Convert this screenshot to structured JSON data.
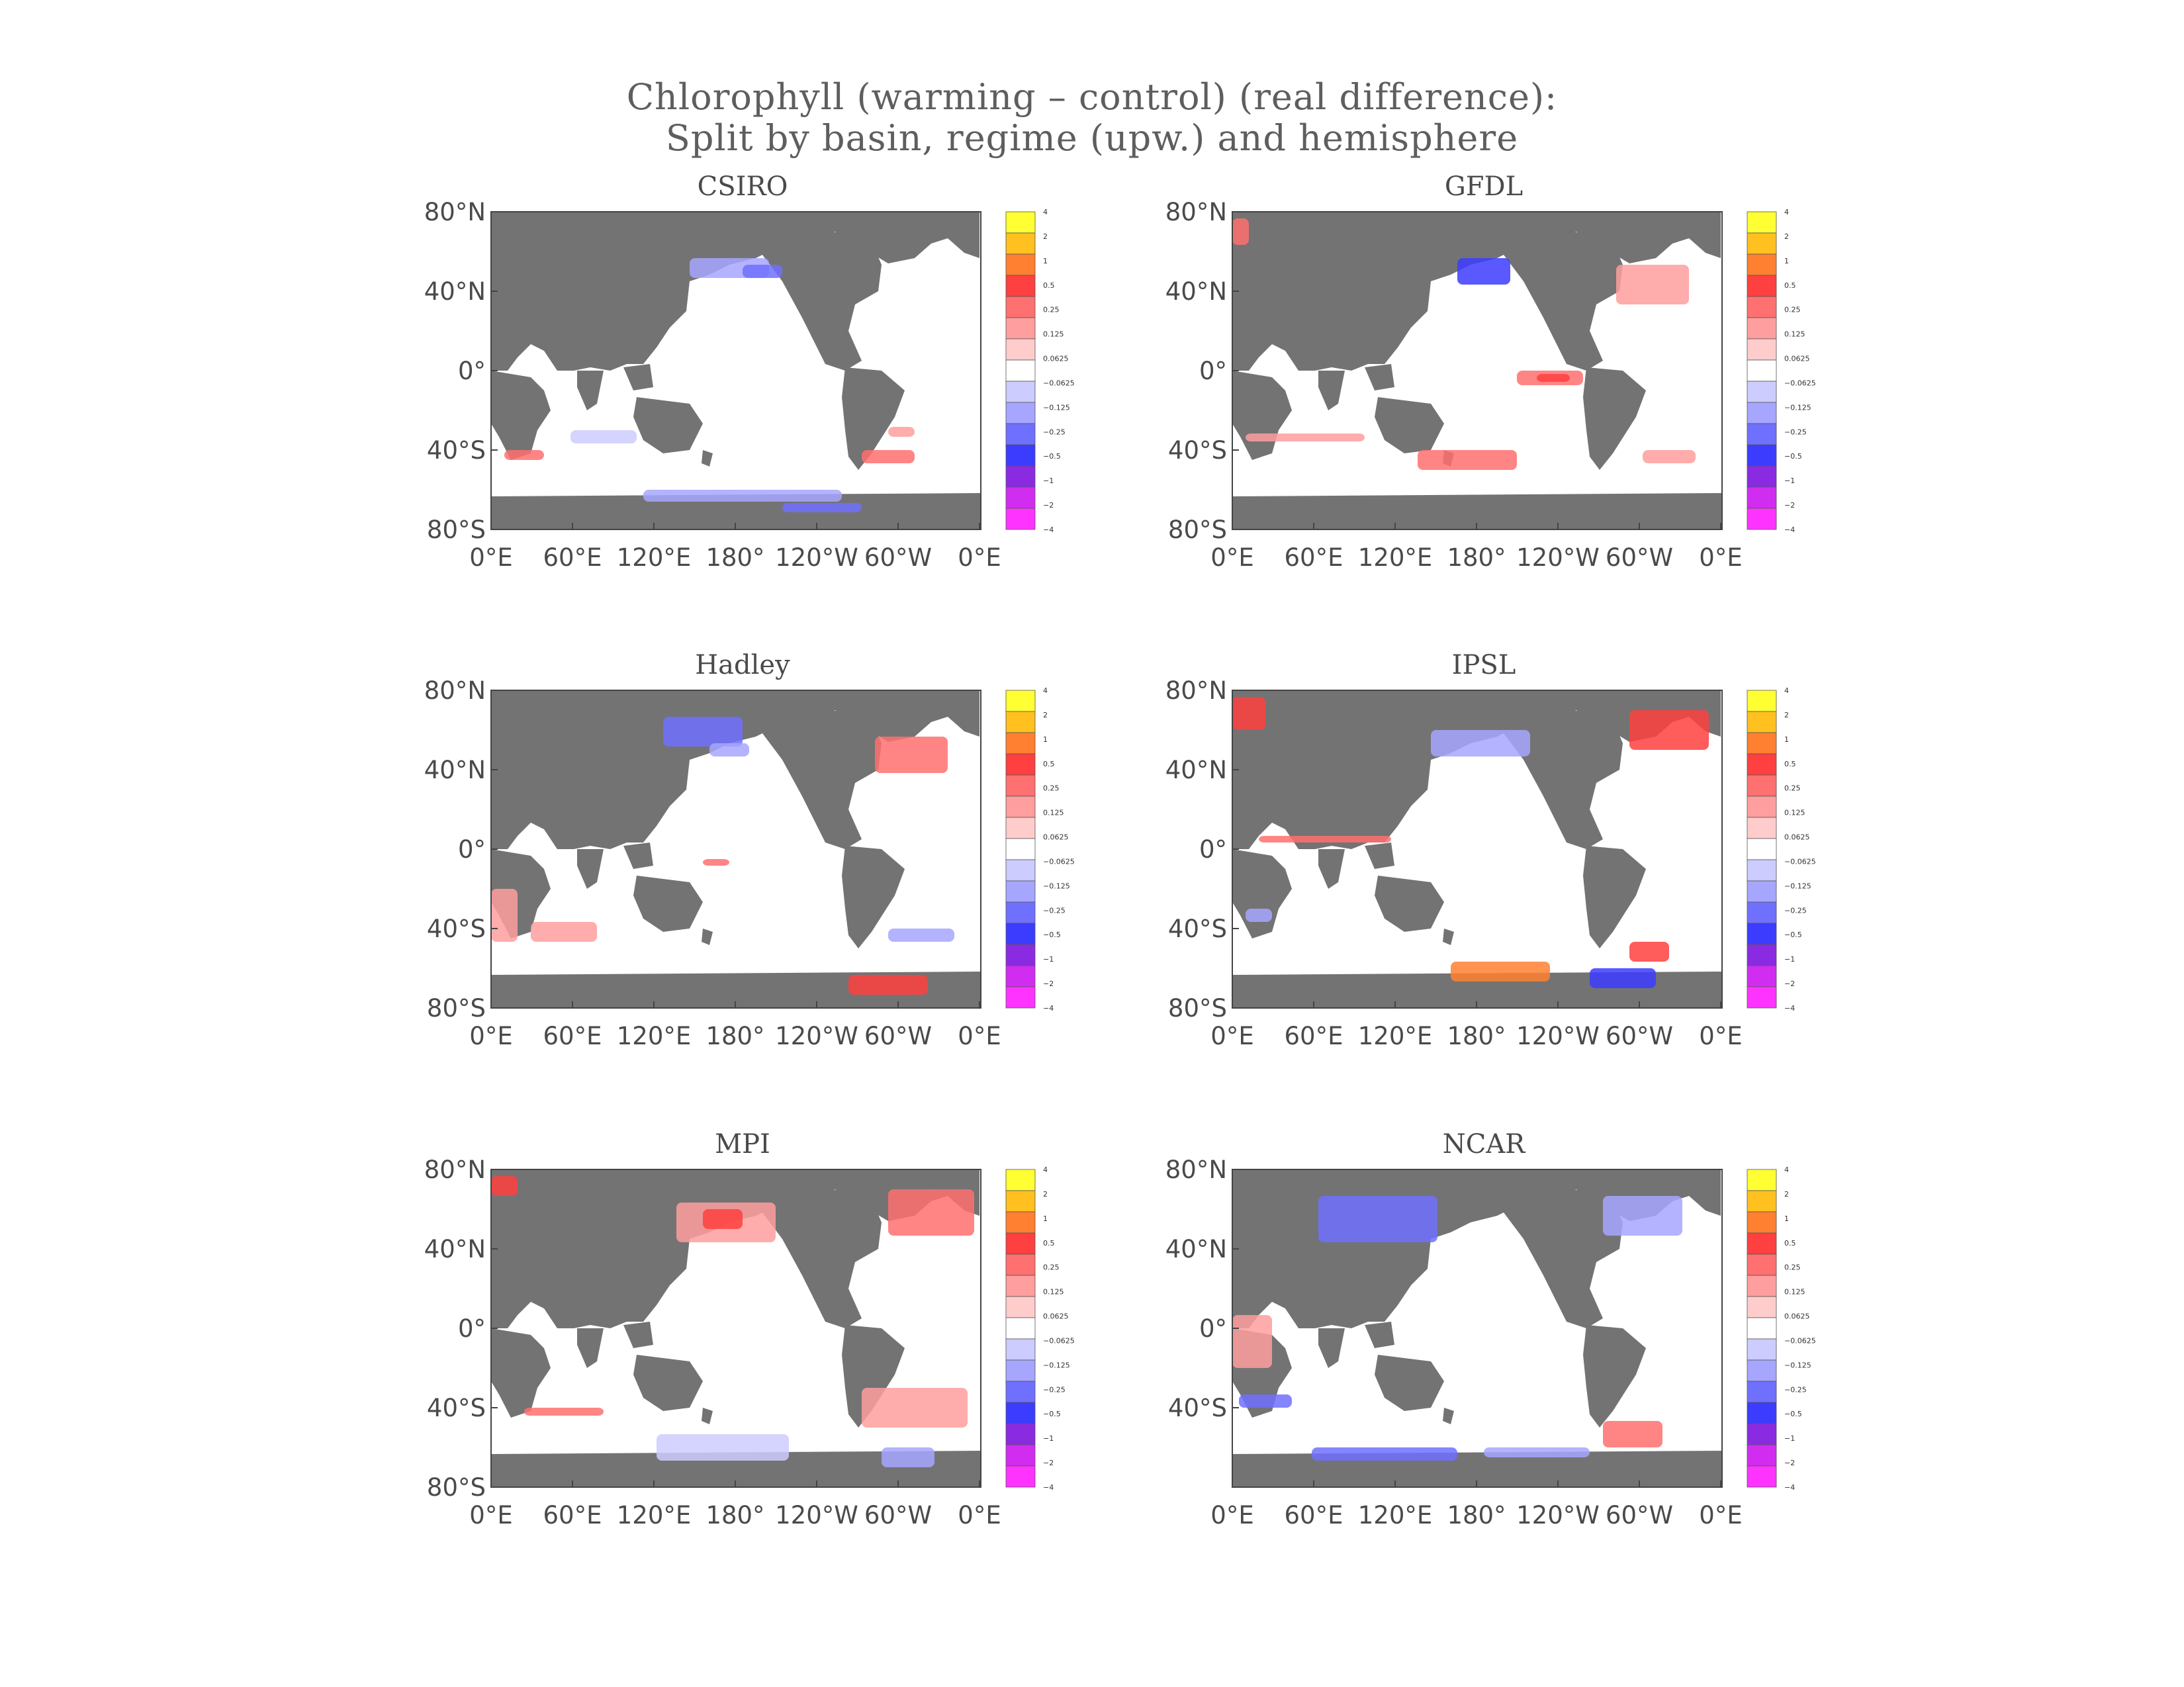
{
  "title_line1": "Chlorophyll (warming – control) (real difference):",
  "title_line2": "Split by basin, regime (upw.) and hemisphere",
  "colors": {
    "land": "#737373",
    "ocean": "#ffffff",
    "frame": "#444444",
    "text": "#4a4a4a"
  },
  "colorbar": {
    "labels": [
      "4",
      "2",
      "1",
      "0.5",
      "0.25",
      "0.125",
      "0.0625",
      "−0.0625",
      "−0.125",
      "−0.25",
      "−0.5",
      "−1",
      "−2",
      "−4"
    ],
    "colors": [
      "#ffff33",
      "#ffc020",
      "#ff8030",
      "#ff4040",
      "#ff7070",
      "#ff9e9e",
      "#ffcccc",
      "#ffffff",
      "#ccccff",
      "#a6a6ff",
      "#7070ff",
      "#3c3cff",
      "#8a2be2",
      "#d02df0",
      "#ff33ff"
    ]
  },
  "panels": [
    {
      "name": "CSIRO",
      "ylabels": [
        "80°N",
        "40°N",
        "0°",
        "40°S",
        "80°S"
      ],
      "xlabels": [
        "0°E",
        "60°E",
        "120°E",
        "180°",
        "120°W",
        "60°W",
        "0°E"
      ]
    },
    {
      "name": "GFDL",
      "ylabels": [
        "80°N",
        "40°N",
        "0°",
        "40°S",
        "80°S"
      ],
      "xlabels": [
        "0°E",
        "60°E",
        "120°E",
        "180°",
        "120°W",
        "60°W",
        "0°E"
      ]
    },
    {
      "name": "Hadley",
      "ylabels": [
        "80°N",
        "40°N",
        "0°",
        "40°S",
        "80°S"
      ],
      "xlabels": [
        "0°E",
        "60°E",
        "120°E",
        "180°",
        "120°W",
        "60°W",
        "0°E"
      ]
    },
    {
      "name": "IPSL",
      "ylabels": [
        "80°N",
        "40°N",
        "0°",
        "40°S",
        "80°S"
      ],
      "xlabels": [
        "0°E",
        "60°E",
        "120°E",
        "180°",
        "120°W",
        "60°W",
        "0°E"
      ]
    },
    {
      "name": "MPI",
      "ylabels": [
        "80°N",
        "40°N",
        "0°",
        "40°S",
        "80°S"
      ],
      "xlabels": [
        "0°E",
        "60°E",
        "120°E",
        "180°",
        "120°W",
        "60°W",
        "0°E"
      ]
    },
    {
      "name": "NCAR",
      "ylabels": [
        "80°N",
        "40°N",
        "0°",
        "40°S"
      ],
      "xlabels": [
        "0°E",
        "60°E",
        "120°E",
        "180°",
        "120°W",
        "60°W",
        "0°E"
      ]
    }
  ]
}
